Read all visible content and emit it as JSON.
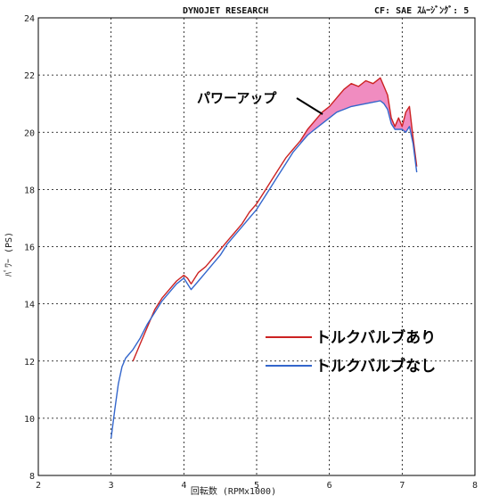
{
  "header": {
    "left": "DYNOJET  RESEARCH",
    "right": "CF: SAE  ｽﾑｰｼﾞﾝｸﾞ: 5"
  },
  "chart_data": {
    "type": "line",
    "xlabel": "回転数 (RPMx1000)",
    "ylabel": "ﾊﾟﾜｰ (PS)",
    "xlim": [
      2,
      8
    ],
    "ylim": [
      8,
      24
    ],
    "xticks": [
      2,
      3,
      4,
      5,
      6,
      7,
      8
    ],
    "yticks": [
      8,
      10,
      12,
      14,
      16,
      18,
      20,
      22,
      24
    ],
    "grid": true,
    "annotation": {
      "text": "パワーアップ"
    },
    "series": [
      {
        "name": "トルクバルブあり",
        "color": "#cc2222",
        "x": [
          3.3,
          3.35,
          3.4,
          3.5,
          3.6,
          3.7,
          3.8,
          3.9,
          4.0,
          4.05,
          4.1,
          4.2,
          4.3,
          4.4,
          4.5,
          4.6,
          4.7,
          4.8,
          4.9,
          5.0,
          5.1,
          5.2,
          5.3,
          5.4,
          5.5,
          5.6,
          5.7,
          5.8,
          5.9,
          6.0,
          6.1,
          6.2,
          6.3,
          6.4,
          6.5,
          6.6,
          6.7,
          6.75,
          6.8,
          6.85,
          6.9,
          6.95,
          7.0,
          7.05,
          7.1,
          7.15,
          7.2
        ],
        "y": [
          12.0,
          12.3,
          12.6,
          13.2,
          13.8,
          14.2,
          14.5,
          14.8,
          15.0,
          14.9,
          14.7,
          15.1,
          15.3,
          15.6,
          15.9,
          16.2,
          16.5,
          16.8,
          17.2,
          17.5,
          17.9,
          18.3,
          18.7,
          19.1,
          19.4,
          19.7,
          20.1,
          20.4,
          20.7,
          20.9,
          21.2,
          21.5,
          21.7,
          21.6,
          21.8,
          21.7,
          21.9,
          21.6,
          21.3,
          20.5,
          20.2,
          20.5,
          20.2,
          20.7,
          20.9,
          19.8,
          18.8
        ]
      },
      {
        "name": "トルクバルブなし",
        "color": "#3366cc",
        "x": [
          3.0,
          3.05,
          3.1,
          3.15,
          3.2,
          3.3,
          3.4,
          3.5,
          3.6,
          3.7,
          3.8,
          3.9,
          4.0,
          4.05,
          4.1,
          4.2,
          4.3,
          4.4,
          4.5,
          4.6,
          4.7,
          4.8,
          4.9,
          5.0,
          5.1,
          5.2,
          5.3,
          5.4,
          5.5,
          5.6,
          5.7,
          5.8,
          5.9,
          6.0,
          6.1,
          6.2,
          6.3,
          6.4,
          6.5,
          6.6,
          6.7,
          6.75,
          6.8,
          6.85,
          6.9,
          6.95,
          7.0,
          7.05,
          7.1,
          7.15,
          7.2
        ],
        "y": [
          9.3,
          10.3,
          11.2,
          11.8,
          12.1,
          12.4,
          12.8,
          13.3,
          13.7,
          14.1,
          14.4,
          14.7,
          14.9,
          14.7,
          14.5,
          14.8,
          15.1,
          15.4,
          15.7,
          16.1,
          16.4,
          16.7,
          17.0,
          17.3,
          17.7,
          18.1,
          18.5,
          18.9,
          19.3,
          19.6,
          19.9,
          20.1,
          20.3,
          20.5,
          20.7,
          20.8,
          20.9,
          20.95,
          21.0,
          21.05,
          21.1,
          21.0,
          20.8,
          20.3,
          20.1,
          20.1,
          20.1,
          20.0,
          20.2,
          19.6,
          18.6
        ]
      }
    ]
  }
}
